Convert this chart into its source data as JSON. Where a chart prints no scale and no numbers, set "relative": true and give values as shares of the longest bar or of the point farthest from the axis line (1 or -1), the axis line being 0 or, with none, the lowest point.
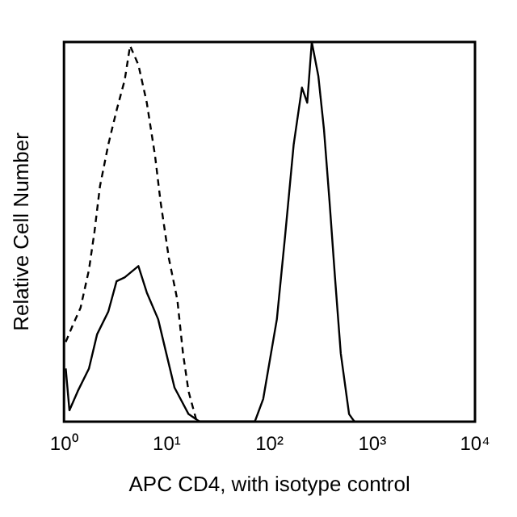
{
  "chart_data": {
    "type": "line",
    "relative": true,
    "log": "x",
    "xlabel": "APC CD4, with isotype control",
    "ylabel": "Relative Cell Number",
    "xlim": [
      1,
      10000
    ],
    "xticks": [
      {
        "value": 1,
        "label": "10⁰"
      },
      {
        "value": 10,
        "label": "10¹"
      },
      {
        "value": 100,
        "label": "10²"
      },
      {
        "value": 1000,
        "label": "10³"
      },
      {
        "value": 10000,
        "label": "10⁴"
      }
    ],
    "grid": false,
    "legend": false,
    "marker": "none",
    "series": [
      {
        "color": "#000000",
        "line_style": "dashed",
        "x": [
          1.04,
          1.2,
          1.45,
          1.75,
          1.98,
          2.24,
          2.7,
          3.25,
          3.9,
          4.4,
          5.3,
          6.4,
          7.7,
          8.7,
          10.5,
          12.7,
          14.4,
          16.3,
          19.6
        ],
        "values": [
          0.21,
          0.25,
          0.3,
          0.4,
          0.5,
          0.62,
          0.73,
          0.82,
          0.9,
          0.99,
          0.94,
          0.84,
          0.7,
          0.58,
          0.43,
          0.32,
          0.18,
          0.08,
          0
        ]
      },
      {
        "color": "#000000",
        "line_style": "solid",
        "x": [
          1.04,
          1.13,
          1.36,
          1.75,
          2.1,
          2.7,
          3.25,
          3.9,
          5.3,
          6.4,
          8.25,
          9.9,
          11.9,
          16.3,
          20.9,
          72,
          86.9,
          118,
          142,
          172,
          207,
          233,
          258,
          299,
          339,
          384,
          434,
          494,
          595,
          671
        ],
        "values": [
          0.14,
          0.03,
          0.08,
          0.14,
          0.23,
          0.29,
          0.37,
          0.38,
          0.41,
          0.34,
          0.27,
          0.18,
          0.09,
          0.02,
          0,
          0,
          0.06,
          0.27,
          0.49,
          0.73,
          0.88,
          0.84,
          1,
          0.91,
          0.77,
          0.58,
          0.38,
          0.18,
          0.02,
          0
        ]
      }
    ]
  }
}
